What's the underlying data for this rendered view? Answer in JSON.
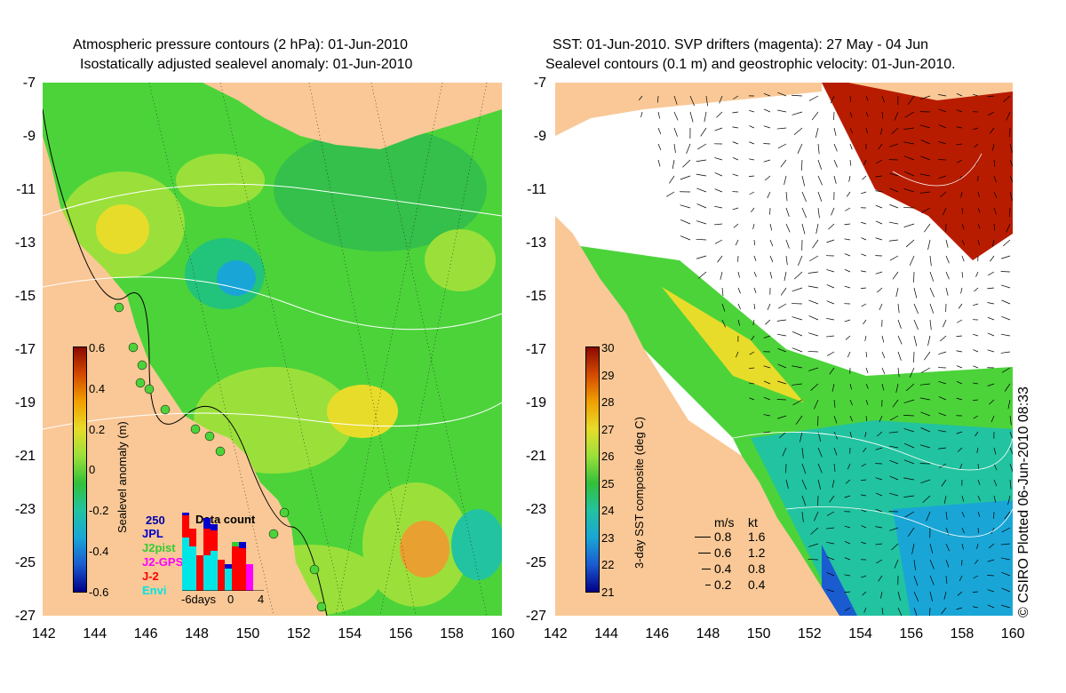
{
  "left_panel": {
    "title_line1": "Atmospheric pressure contours (2 hPa): 01-Jun-2010",
    "title_line2": "Isostatically adjusted sealevel anomaly: 01-Jun-2010",
    "colorbar": {
      "label": "Sealevel anomaly (m)",
      "ticks": [
        "0.6",
        "0.4",
        "0.2",
        "0",
        "-0.2",
        "-0.4",
        "-0.6"
      ]
    },
    "data_count": {
      "title": "Data count",
      "count_label": "250",
      "series": [
        {
          "name": "JPL",
          "color": "#0000cc"
        },
        {
          "name": "J2pist",
          "color": "#33cc33"
        },
        {
          "name": "J2-GPS",
          "color": "#ff00ff"
        },
        {
          "name": "J-2",
          "color": "#ff0000"
        },
        {
          "name": "Envi",
          "color": "#00e5e5"
        }
      ],
      "axis_labels": [
        "-6days",
        "0",
        "4"
      ]
    }
  },
  "right_panel": {
    "title_line1": "SST: 01-Jun-2010. SVP drifters (magenta): 27 May - 04 Jun",
    "title_line2": "Sealevel contours (0.1 m) and geostrophic velocity: 01-Jun-2010.",
    "colorbar": {
      "label": "3-day SST composite (deg C)",
      "ticks": [
        "30",
        "29",
        "28",
        "27",
        "26",
        "25",
        "24",
        "23",
        "22",
        "21"
      ]
    },
    "velocity_legend": {
      "header_ms": "m/s",
      "header_kt": "kt",
      "rows": [
        {
          "ms": "0.8",
          "kt": "1.6"
        },
        {
          "ms": "0.6",
          "kt": "1.2"
        },
        {
          "ms": "0.4",
          "kt": "0.8"
        },
        {
          "ms": "0.2",
          "kt": "0.4"
        }
      ]
    }
  },
  "axes": {
    "y_ticks": [
      "-7",
      "-9",
      "-11",
      "-13",
      "-15",
      "-17",
      "-19",
      "-21",
      "-23",
      "-25",
      "-27"
    ],
    "x_ticks": [
      "142",
      "144",
      "146",
      "148",
      "150",
      "152",
      "154",
      "156",
      "158",
      "160"
    ]
  },
  "copyright": "© CSIRO Plotted 06-Jun-2010 08:33",
  "colors": {
    "land": "#f9c896",
    "ocean_green": "#4cd33a",
    "ocean_light_green": "#9be03a",
    "sst_warm": "#b81c00",
    "cloud": "#ffffff"
  }
}
